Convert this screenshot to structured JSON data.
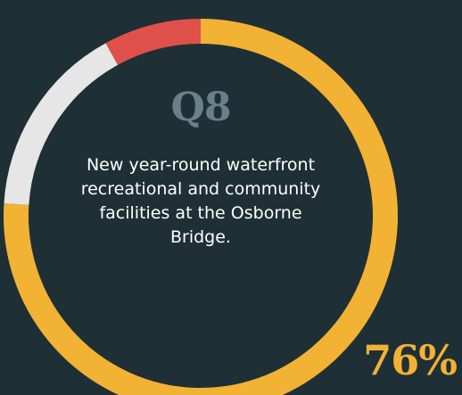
{
  "question_label": "Q8",
  "caption": "New year-round waterfront recreational and community facilities at the Osborne Bridge.",
  "percent_label": "76%",
  "chart_data": {
    "type": "pie",
    "style": "donut",
    "slices": [
      {
        "value": 76,
        "color": "#f2b233"
      },
      {
        "value": 16,
        "color": "#e6e6e6"
      },
      {
        "value": 8,
        "color": "#e0504a"
      }
    ]
  }
}
